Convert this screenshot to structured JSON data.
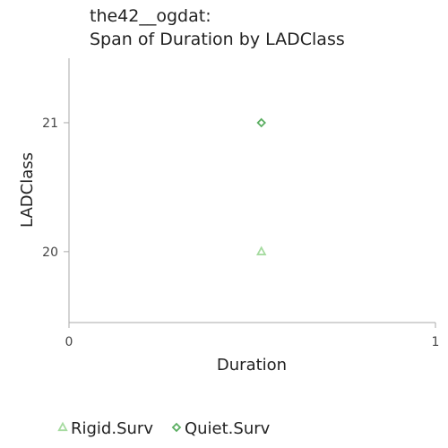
{
  "chart_data": {
    "type": "scatter",
    "title_lines": [
      "the42__ogdat:",
      "Span of Duration by LADClass"
    ],
    "xlabel": "Duration",
    "ylabel": "LADClass",
    "xlim": [
      0,
      1
    ],
    "ylim": [
      19.45,
      21.5
    ],
    "x_ticks": [
      0,
      1
    ],
    "y_ticks": [
      20,
      21
    ],
    "grid": false,
    "legend_position": "bottom-left",
    "series": [
      {
        "name": "Rigid.Surv",
        "marker": "triangle",
        "color": "#a6dba0",
        "points": [
          {
            "x": 0.525,
            "y": 20
          }
        ]
      },
      {
        "name": "Quiet.Surv",
        "marker": "diamond",
        "color": "#5aae61",
        "points": [
          {
            "x": 0.525,
            "y": 21
          }
        ]
      }
    ]
  }
}
